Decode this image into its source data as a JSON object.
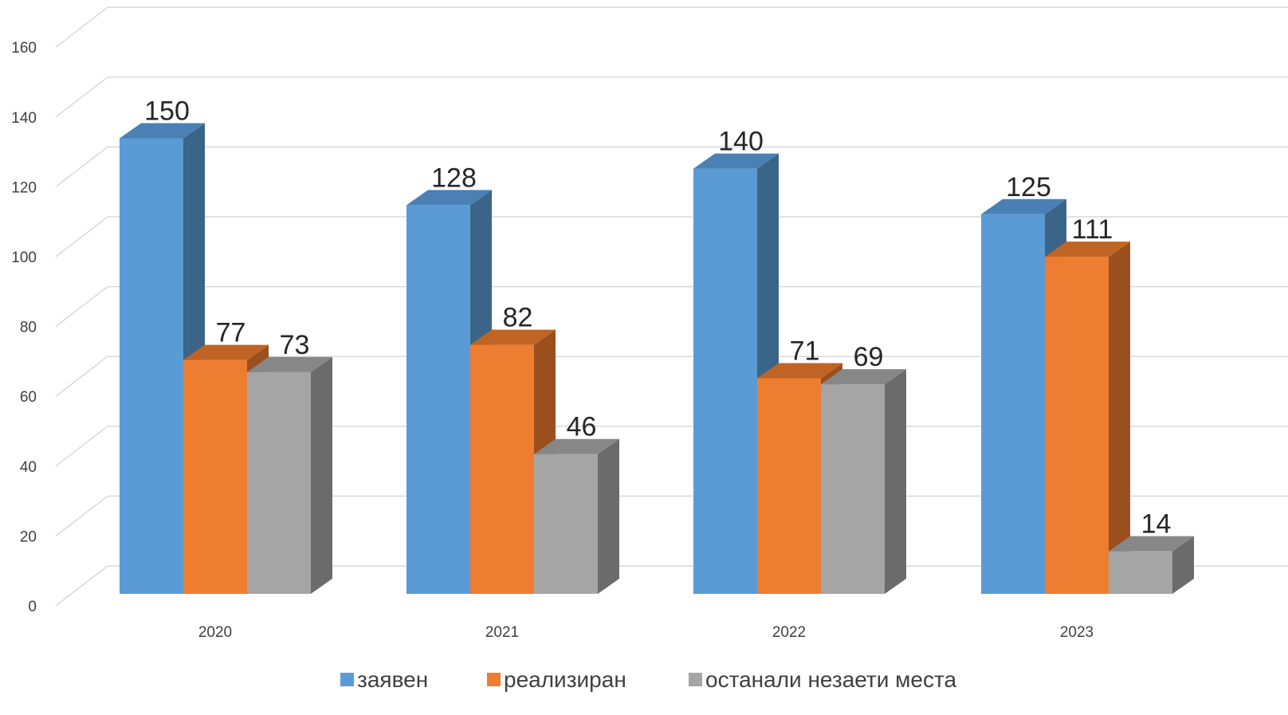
{
  "chart_data": {
    "type": "bar",
    "style": "3d-clustered-column",
    "categories": [
      "2020",
      "2021",
      "2022",
      "2023"
    ],
    "series": [
      {
        "name": "заявен",
        "values": [
          150,
          128,
          140,
          125
        ],
        "color": "#5B9BD5",
        "side_color": "#3A6589",
        "top_color": "#4A80B3"
      },
      {
        "name": "реализиран",
        "values": [
          77,
          82,
          71,
          111
        ],
        "color": "#ED7D31",
        "side_color": "#9B4F1E",
        "top_color": "#C06425"
      },
      {
        "name": "останали незаети места",
        "values": [
          73,
          46,
          69,
          14
        ],
        "color": "#A5A5A5",
        "side_color": "#6B6B6B",
        "top_color": "#878787"
      }
    ],
    "yticks": [
      0,
      20,
      40,
      60,
      80,
      100,
      120,
      140,
      160
    ],
    "ylim": [
      0,
      160
    ],
    "title": "",
    "xlabel": "",
    "ylabel": "",
    "grid": true,
    "legend_position": "bottom",
    "data_labels": true
  }
}
